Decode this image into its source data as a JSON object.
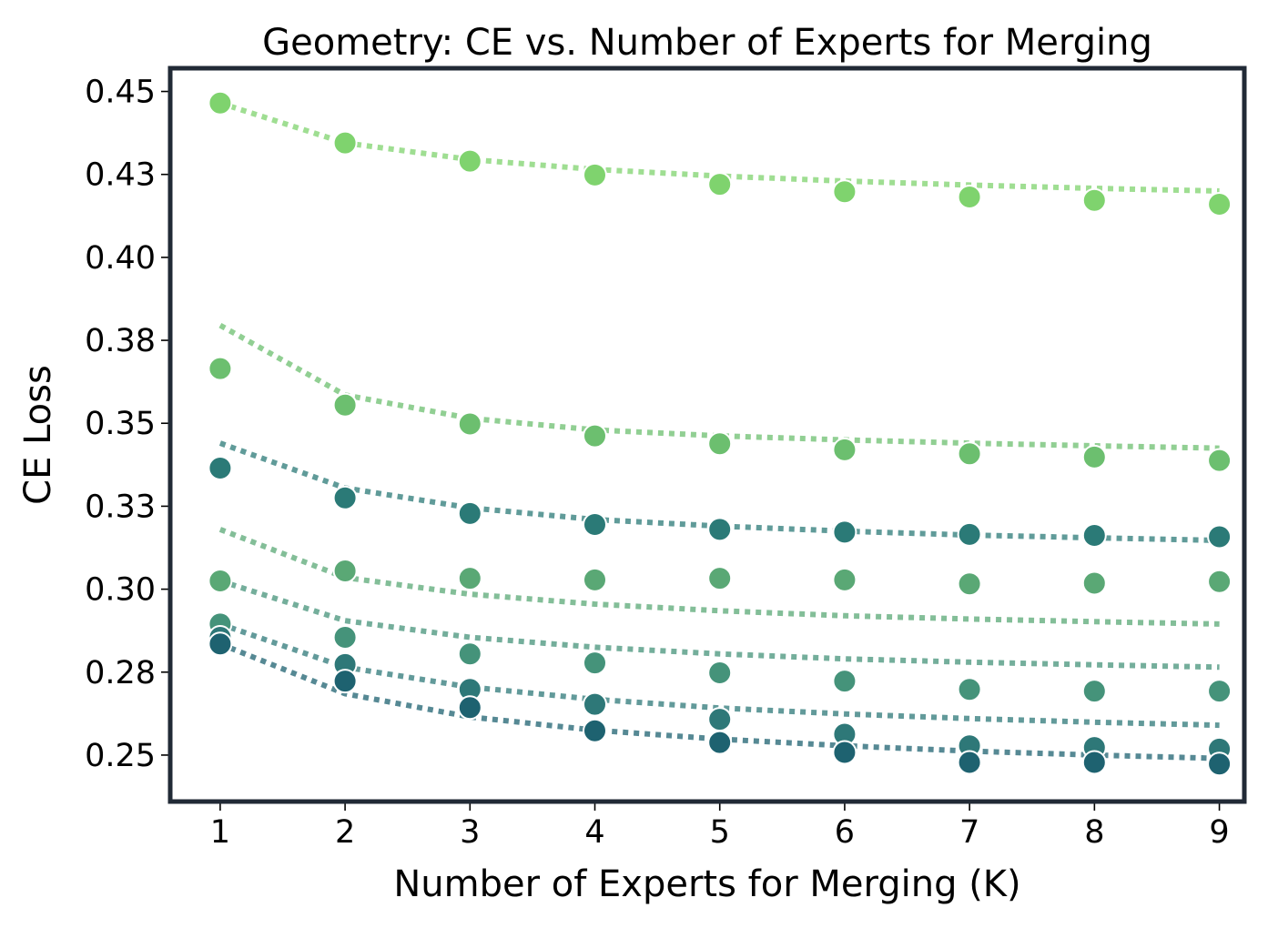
{
  "chart_data": {
    "type": "scatter",
    "title": "Geometry: CE vs. Number of Experts for Merging",
    "xlabel": "Number of Experts for Merging (K)",
    "ylabel": "CE Loss",
    "xlim": [
      0.6,
      9.2
    ],
    "ylim": [
      0.236,
      0.457
    ],
    "x_ticks": [
      1,
      2,
      3,
      4,
      5,
      6,
      7,
      8,
      9
    ],
    "x_tick_labels": [
      "1",
      "2",
      "3",
      "4",
      "5",
      "6",
      "7",
      "8",
      "9"
    ],
    "y_ticks": [
      0.25,
      0.275,
      0.3,
      0.325,
      0.35,
      0.375,
      0.4,
      0.425,
      0.45
    ],
    "y_tick_labels": [
      "0.25",
      "0.28",
      "0.30",
      "0.33",
      "0.35",
      "0.38",
      "0.40",
      "0.43",
      "0.45"
    ],
    "grid": false,
    "legend": "none",
    "frame_color": "#212a36",
    "x": [
      1,
      2,
      3,
      4,
      5,
      6,
      7,
      8,
      9
    ],
    "series": [
      {
        "color": "#7fd36e",
        "points": [
          0.4465,
          0.4345,
          0.429,
          0.4248,
          0.422,
          0.4198,
          0.4182,
          0.4172,
          0.416
        ],
        "fit": [
          0.4465,
          0.4345,
          0.4295,
          0.4265,
          0.4245,
          0.423,
          0.4218,
          0.4208,
          0.42
        ]
      },
      {
        "color": "#6cbf6f",
        "points": [
          0.3665,
          0.3555,
          0.3498,
          0.3462,
          0.3438,
          0.342,
          0.3408,
          0.3398,
          0.3388
        ],
        "fit": [
          0.3795,
          0.3585,
          0.3515,
          0.348,
          0.3462,
          0.345,
          0.344,
          0.3432,
          0.3425
        ]
      },
      {
        "color": "#2b7a77",
        "points": [
          0.3365,
          0.3275,
          0.3228,
          0.3195,
          0.318,
          0.3172,
          0.3165,
          0.3162,
          0.3158
        ],
        "fit": [
          0.344,
          0.3305,
          0.3245,
          0.321,
          0.319,
          0.3175,
          0.3163,
          0.3155,
          0.3147
        ]
      },
      {
        "color": "#5aa875",
        "points": [
          0.3025,
          0.3055,
          0.3033,
          0.3028,
          0.3033,
          0.3028,
          0.3016,
          0.3018,
          0.3023
        ],
        "fit": [
          0.318,
          0.3035,
          0.2985,
          0.2955,
          0.2935,
          0.292,
          0.291,
          0.2902,
          0.2895
        ]
      },
      {
        "color": "#45937a",
        "points": [
          0.2895,
          0.2855,
          0.2805,
          0.2778,
          0.2748,
          0.2723,
          0.2698,
          0.2693,
          0.2693
        ],
        "fit": [
          0.3025,
          0.2905,
          0.2855,
          0.2825,
          0.2805,
          0.279,
          0.278,
          0.2772,
          0.2765
        ]
      },
      {
        "color": "#2e7878",
        "points": [
          0.2855,
          0.2773,
          0.2698,
          0.2653,
          0.2608,
          0.2563,
          0.2528,
          0.2523,
          0.2518
        ],
        "fit": [
          0.2895,
          0.2765,
          0.2705,
          0.2668,
          0.2642,
          0.2624,
          0.261,
          0.2599,
          0.259
        ]
      },
      {
        "color": "#1e6270",
        "points": [
          0.2835,
          0.2723,
          0.2643,
          0.2573,
          0.2538,
          0.2508,
          0.2478,
          0.2478,
          0.2473
        ],
        "fit": [
          0.2835,
          0.2685,
          0.2615,
          0.2575,
          0.2548,
          0.2528,
          0.2512,
          0.25,
          0.249
        ]
      }
    ]
  }
}
